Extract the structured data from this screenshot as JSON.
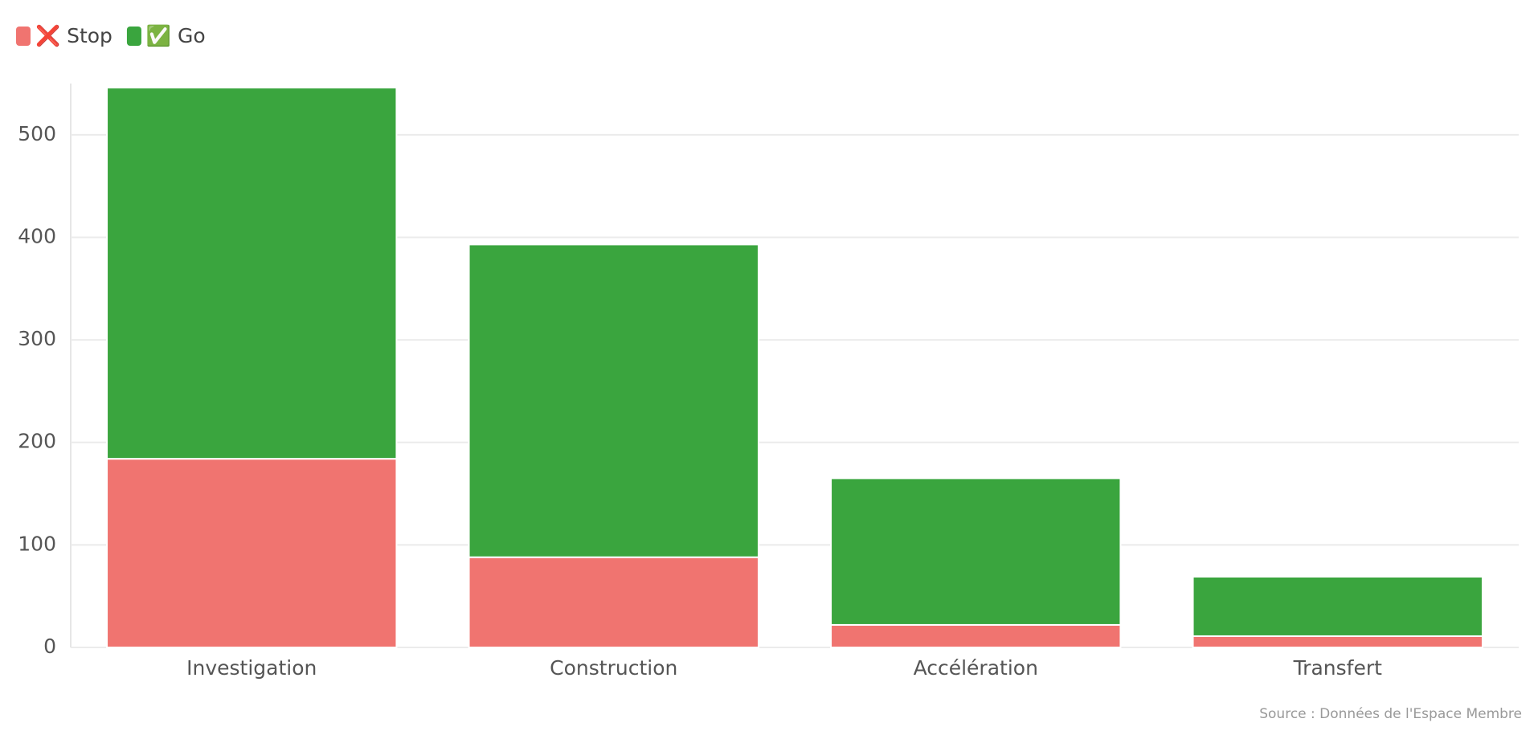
{
  "chart_data": {
    "type": "stacked_bar",
    "categories": [
      "Investigation",
      "Construction",
      "Accélération",
      "Transfert"
    ],
    "series": [
      {
        "name": "❌ Stop",
        "color": "#f07470",
        "values": [
          184,
          88,
          22,
          11
        ]
      },
      {
        "name": "✅ Go",
        "color": "#3aa53e",
        "values": [
          362,
          305,
          143,
          58
        ]
      }
    ],
    "ylim": [
      0,
      550
    ],
    "yticks": [
      0,
      100,
      200,
      300,
      400,
      500
    ],
    "grid": true,
    "legend": "top-left",
    "source": "Source : Données de l'Espace Membre"
  }
}
